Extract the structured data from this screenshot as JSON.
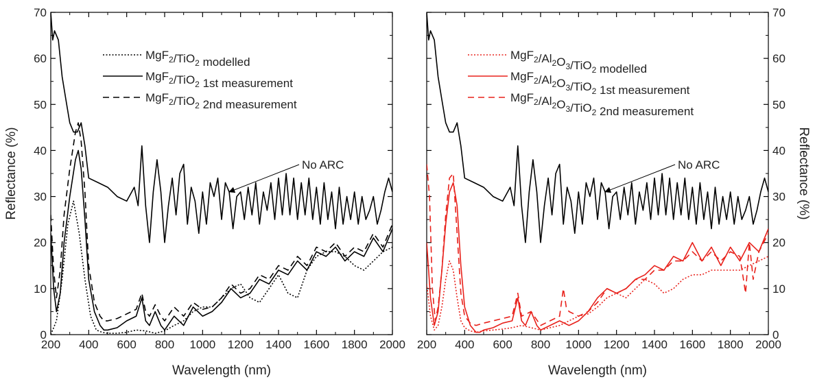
{
  "chart_data": [
    {
      "type": "line",
      "xlabel": "Wavelength (nm)",
      "ylabel": "Reflectance (%)",
      "xlim": [
        200,
        2000
      ],
      "ylim": [
        0,
        70
      ],
      "xticks": [
        "200",
        "400",
        "600",
        "800",
        "1000",
        "1200",
        "1400",
        "1600",
        "1800",
        "2000"
      ],
      "yticks": [
        "0",
        "10",
        "20",
        "30",
        "40",
        "50",
        "60",
        "70"
      ],
      "y_axis_side": "left",
      "legend_position": "top-center",
      "line_color": "#000000",
      "annotation": {
        "text": "No ARC",
        "points_to": [
          1140,
          31
        ]
      },
      "series": [
        {
          "name": "MgF2/TiO2 modelled",
          "name_parts": {
            "a": "MgF",
            "s1": "2",
            "b": "/TiO",
            "s2": "2",
            "c": " modelled"
          },
          "style": "dotted",
          "x": [
            200,
            230,
            260,
            290,
            320,
            350,
            380,
            410,
            440,
            470,
            500,
            550,
            600,
            650,
            700,
            750,
            800,
            850,
            900,
            950,
            1000,
            1050,
            1100,
            1150,
            1200,
            1250,
            1300,
            1350,
            1400,
            1450,
            1500,
            1550,
            1600,
            1650,
            1700,
            1750,
            1800,
            1850,
            1900,
            1950,
            2000
          ],
          "y": [
            0,
            3,
            12,
            24,
            29,
            22,
            12,
            4,
            1,
            0.5,
            0.3,
            0.3,
            0.5,
            1,
            0.8,
            0.3,
            0.8,
            2,
            3,
            5,
            6,
            6,
            8,
            10,
            11,
            8,
            7,
            10,
            13,
            9,
            8,
            14,
            17,
            18,
            18,
            17,
            15,
            14,
            16,
            18,
            19
          ]
        },
        {
          "name": "MgF2/TiO2 1st measurement",
          "name_parts": {
            "a": "MgF",
            "s1": "2",
            "b": "/TiO",
            "s2": "2",
            "c": " 1st measurement"
          },
          "style": "solid",
          "x": [
            200,
            215,
            230,
            250,
            270,
            300,
            330,
            345,
            360,
            380,
            400,
            430,
            460,
            480,
            500,
            550,
            600,
            650,
            680,
            700,
            720,
            750,
            780,
            800,
            850,
            900,
            950,
            1000,
            1050,
            1100,
            1150,
            1200,
            1250,
            1300,
            1350,
            1400,
            1450,
            1500,
            1550,
            1600,
            1650,
            1700,
            1750,
            1800,
            1850,
            1900,
            1950,
            2000
          ],
          "y": [
            22,
            10,
            5,
            9,
            20,
            30,
            38,
            40,
            36,
            25,
            12,
            5,
            2,
            1,
            1,
            1.5,
            3,
            4,
            8,
            3,
            2,
            5,
            2,
            1,
            4,
            2,
            6,
            4,
            5,
            7,
            10,
            8,
            9,
            12,
            11,
            14,
            13,
            16,
            14,
            18,
            17,
            19,
            16,
            18,
            17,
            21,
            18,
            23
          ]
        },
        {
          "name": "MgF2/TiO2 2nd measurement",
          "name_parts": {
            "a": "MgF",
            "s1": "2",
            "b": "/TiO",
            "s2": "2",
            "c": " 2nd measurement"
          },
          "style": "dashed",
          "x": [
            200,
            215,
            230,
            250,
            270,
            300,
            330,
            345,
            360,
            380,
            400,
            430,
            460,
            480,
            500,
            550,
            600,
            650,
            680,
            700,
            720,
            750,
            780,
            800,
            850,
            900,
            950,
            1000,
            1050,
            1100,
            1150,
            1200,
            1250,
            1300,
            1350,
            1400,
            1450,
            1500,
            1550,
            1600,
            1650,
            1700,
            1750,
            1800,
            1850,
            1900,
            1950,
            2000
          ],
          "y": [
            26,
            14,
            8,
            14,
            26,
            36,
            44,
            46,
            42,
            31,
            15,
            7,
            4,
            3,
            3,
            3.5,
            4.5,
            5.5,
            9,
            5,
            4,
            6.5,
            4,
            3,
            6,
            4,
            7,
            5.5,
            6,
            8,
            11,
            9,
            10,
            13,
            12,
            15,
            14,
            17,
            15,
            19,
            18,
            20,
            17,
            19,
            18,
            22,
            19,
            24
          ]
        },
        {
          "name": "No ARC",
          "style": "solid",
          "x": [
            200,
            210,
            220,
            240,
            260,
            280,
            300,
            320,
            340,
            360,
            380,
            400,
            450,
            500,
            550,
            600,
            640,
            660,
            680,
            700,
            720,
            740,
            760,
            780,
            800,
            820,
            840,
            860,
            880,
            900,
            920,
            940,
            960,
            980,
            1000,
            1020,
            1040,
            1060,
            1080,
            1100,
            1120,
            1140,
            1160,
            1180,
            1200,
            1220,
            1240,
            1260,
            1280,
            1300,
            1320,
            1340,
            1360,
            1380,
            1400,
            1420,
            1440,
            1460,
            1480,
            1500,
            1520,
            1540,
            1560,
            1580,
            1600,
            1620,
            1640,
            1660,
            1680,
            1700,
            1720,
            1740,
            1760,
            1780,
            1800,
            1820,
            1840,
            1860,
            1880,
            1900,
            1920,
            1940,
            1960,
            1980,
            2000
          ],
          "y": [
            70,
            64,
            66,
            64,
            56,
            51,
            46,
            44,
            44,
            46,
            41,
            34,
            33,
            32,
            30,
            29,
            32,
            28,
            41,
            28,
            20,
            31,
            38,
            31,
            20,
            28,
            34,
            26,
            35,
            37,
            24,
            32,
            29,
            22,
            31,
            24,
            33,
            30,
            34,
            25,
            33,
            31,
            23,
            30,
            31,
            25,
            32,
            26,
            33,
            24,
            31,
            27,
            33,
            25,
            34,
            26,
            35,
            26,
            34,
            25,
            33,
            26,
            34,
            25,
            32,
            24,
            33,
            25,
            31,
            23,
            32,
            24,
            30,
            25,
            31,
            24,
            30,
            25,
            27,
            30,
            24,
            27,
            31,
            34,
            31
          ]
        }
      ]
    },
    {
      "type": "line",
      "xlabel": "Wavelength (nm)",
      "ylabel": "Reflectance (%)",
      "xlim": [
        200,
        2000
      ],
      "ylim": [
        0,
        70
      ],
      "xticks": [
        "200",
        "400",
        "600",
        "800",
        "1000",
        "1200",
        "1400",
        "1600",
        "1800",
        "2000"
      ],
      "yticks": [
        "0",
        "10",
        "20",
        "30",
        "40",
        "50",
        "60",
        "70"
      ],
      "y_axis_side": "right",
      "legend_position": "top-center",
      "line_color": "#e8201a",
      "annotation": {
        "text": "No ARC",
        "points_to": [
          1140,
          31
        ]
      },
      "series": [
        {
          "name": "MgF2/Al2O3/TiO2 modelled",
          "name_parts": {
            "a": "MgF",
            "s1": "2",
            "b": "/Al",
            "s2": "2",
            "b2": "O",
            "s3": "3",
            "b3": "/TiO",
            "s4": "2",
            "c": " modelled"
          },
          "style": "dotted",
          "x": [
            200,
            220,
            240,
            260,
            280,
            300,
            320,
            340,
            360,
            380,
            400,
            430,
            460,
            500,
            550,
            600,
            650,
            700,
            750,
            800,
            850,
            900,
            950,
            1000,
            1050,
            1100,
            1150,
            1200,
            1250,
            1300,
            1350,
            1400,
            1450,
            1500,
            1550,
            1600,
            1650,
            1700,
            1750,
            1800,
            1850,
            1900,
            1950,
            2000
          ],
          "y": [
            11,
            4,
            1,
            2,
            6,
            12,
            16,
            14,
            8,
            3,
            1.5,
            0.8,
            0.5,
            0.8,
            1,
            1.2,
            1.5,
            2,
            1.5,
            1,
            1.5,
            2,
            3,
            4,
            4.5,
            6,
            8,
            9,
            8,
            10,
            12,
            11,
            9,
            10,
            12,
            13,
            13,
            14,
            14,
            14,
            14,
            15,
            16,
            17
          ]
        },
        {
          "name": "MgF2/Al2O3/TiO2 1st measurement",
          "name_parts": {
            "a": "MgF",
            "s1": "2",
            "b": "/Al",
            "s2": "2",
            "b2": "O",
            "s3": "3",
            "b3": "/TiO",
            "s4": "2",
            "c": " 1st measurement"
          },
          "style": "solid",
          "x": [
            200,
            220,
            240,
            260,
            280,
            300,
            320,
            340,
            360,
            380,
            400,
            430,
            460,
            480,
            500,
            550,
            600,
            650,
            680,
            700,
            720,
            750,
            780,
            800,
            850,
            900,
            950,
            1000,
            1050,
            1100,
            1150,
            1200,
            1250,
            1300,
            1350,
            1400,
            1450,
            1500,
            1550,
            1600,
            1650,
            1700,
            1750,
            1800,
            1850,
            1900,
            1950,
            2000
          ],
          "y": [
            20,
            8,
            2,
            5,
            14,
            24,
            31,
            33,
            28,
            15,
            6,
            2,
            0.5,
            0.5,
            1,
            1.5,
            2.5,
            3,
            8,
            3,
            2,
            5,
            2,
            1,
            2,
            3,
            2,
            3,
            5,
            8,
            10,
            9,
            10,
            12,
            13,
            15,
            14,
            17,
            16,
            20,
            16,
            19,
            15,
            19,
            16,
            20,
            18,
            23
          ]
        },
        {
          "name": "MgF2/Al2O3/TiO2 2nd measurement",
          "name_parts": {
            "a": "MgF",
            "s1": "2",
            "b": "/Al",
            "s2": "2",
            "b2": "O",
            "s3": "3",
            "b3": "/TiO",
            "s4": "2",
            "c": " 2nd measurement"
          },
          "style": "dashed",
          "x": [
            200,
            215,
            230,
            245,
            260,
            280,
            300,
            320,
            340,
            360,
            380,
            400,
            430,
            460,
            500,
            550,
            600,
            650,
            680,
            700,
            750,
            800,
            850,
            900,
            920,
            935,
            950,
            1000,
            1050,
            1100,
            1150,
            1200,
            1250,
            1300,
            1350,
            1400,
            1450,
            1500,
            1550,
            1600,
            1650,
            1700,
            1750,
            1800,
            1850,
            1880,
            1900,
            1920,
            1950,
            2000
          ],
          "y": [
            37,
            30,
            10,
            3,
            6,
            14,
            26,
            34,
            35,
            22,
            9,
            4,
            2.5,
            2,
            2.5,
            3,
            3.5,
            4,
            9,
            4,
            5,
            2,
            3,
            4,
            10,
            6,
            5,
            4,
            5,
            7,
            10,
            9,
            10,
            12,
            12,
            14,
            14,
            16,
            16,
            18,
            16,
            18,
            16,
            18,
            17,
            9,
            20,
            12,
            18,
            22
          ]
        },
        {
          "name": "No ARC",
          "style": "solid",
          "x": [
            200,
            210,
            220,
            240,
            260,
            280,
            300,
            320,
            340,
            360,
            380,
            400,
            450,
            500,
            550,
            600,
            640,
            660,
            680,
            700,
            720,
            740,
            760,
            780,
            800,
            820,
            840,
            860,
            880,
            900,
            920,
            940,
            960,
            980,
            1000,
            1020,
            1040,
            1060,
            1080,
            1100,
            1120,
            1140,
            1160,
            1180,
            1200,
            1220,
            1240,
            1260,
            1280,
            1300,
            1320,
            1340,
            1360,
            1380,
            1400,
            1420,
            1440,
            1460,
            1480,
            1500,
            1520,
            1540,
            1560,
            1580,
            1600,
            1620,
            1640,
            1660,
            1680,
            1700,
            1720,
            1740,
            1760,
            1780,
            1800,
            1820,
            1840,
            1860,
            1880,
            1900,
            1920,
            1940,
            1960,
            1980,
            2000
          ],
          "y": [
            70,
            64,
            66,
            64,
            56,
            51,
            46,
            44,
            44,
            46,
            41,
            34,
            33,
            32,
            30,
            29,
            32,
            28,
            41,
            28,
            20,
            31,
            38,
            31,
            20,
            28,
            34,
            26,
            35,
            37,
            24,
            32,
            29,
            22,
            31,
            24,
            33,
            30,
            34,
            25,
            33,
            31,
            23,
            30,
            31,
            25,
            32,
            26,
            33,
            24,
            31,
            27,
            33,
            25,
            34,
            26,
            35,
            26,
            34,
            25,
            33,
            26,
            34,
            25,
            32,
            24,
            33,
            25,
            31,
            23,
            32,
            24,
            30,
            25,
            31,
            24,
            30,
            25,
            27,
            30,
            24,
            27,
            31,
            34,
            31
          ]
        }
      ]
    }
  ]
}
